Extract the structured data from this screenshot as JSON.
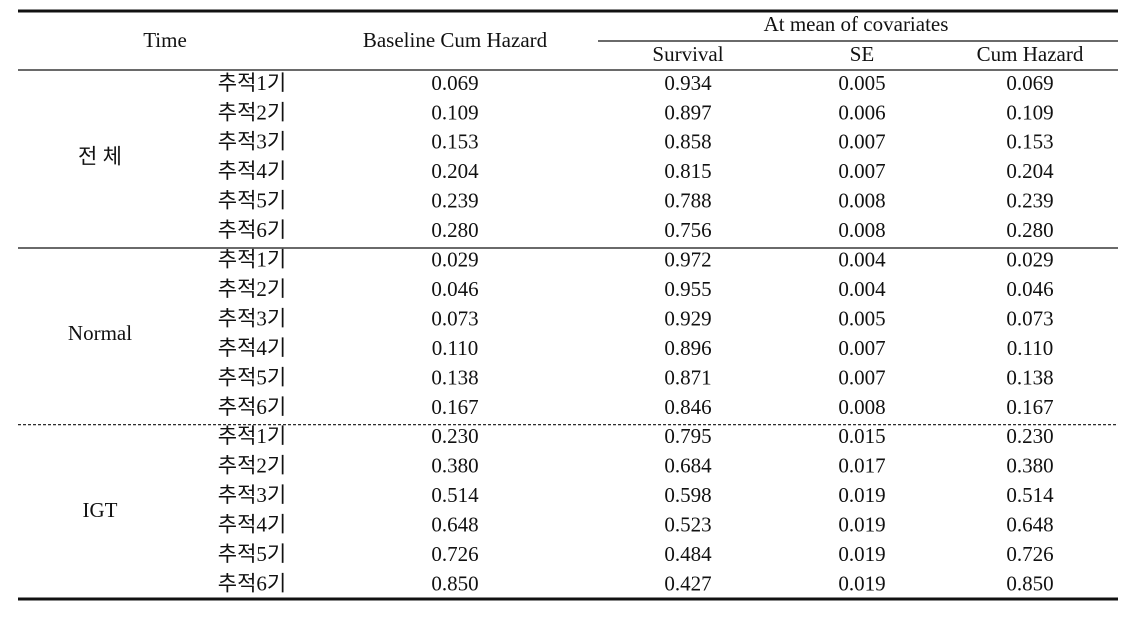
{
  "table": {
    "header": {
      "time": "Time",
      "baseline": "Baseline Cum Hazard",
      "group": "At mean of covariates",
      "sub": [
        "Survival",
        "SE",
        "Cum Hazard"
      ]
    },
    "groups": [
      {
        "name": "전 체",
        "rows": [
          [
            "추적1기",
            "0.069",
            "0.934",
            "0.005",
            "0.069"
          ],
          [
            "추적2기",
            "0.109",
            "0.897",
            "0.006",
            "0.109"
          ],
          [
            "추적3기",
            "0.153",
            "0.858",
            "0.007",
            "0.153"
          ],
          [
            "추적4기",
            "0.204",
            "0.815",
            "0.007",
            "0.204"
          ],
          [
            "추적5기",
            "0.239",
            "0.788",
            "0.008",
            "0.239"
          ],
          [
            "추적6기",
            "0.280",
            "0.756",
            "0.008",
            "0.280"
          ]
        ]
      },
      {
        "name": "Normal",
        "rows": [
          [
            "추적1기",
            "0.029",
            "0.972",
            "0.004",
            "0.029"
          ],
          [
            "추적2기",
            "0.046",
            "0.955",
            "0.004",
            "0.046"
          ],
          [
            "추적3기",
            "0.073",
            "0.929",
            "0.005",
            "0.073"
          ],
          [
            "추적4기",
            "0.110",
            "0.896",
            "0.007",
            "0.110"
          ],
          [
            "추적5기",
            "0.138",
            "0.871",
            "0.007",
            "0.138"
          ],
          [
            "추적6기",
            "0.167",
            "0.846",
            "0.008",
            "0.167"
          ]
        ]
      },
      {
        "name": "IGT",
        "rows": [
          [
            "추적1기",
            "0.230",
            "0.795",
            "0.015",
            "0.230"
          ],
          [
            "추적2기",
            "0.380",
            "0.684",
            "0.017",
            "0.380"
          ],
          [
            "추적3기",
            "0.514",
            "0.598",
            "0.019",
            "0.514"
          ],
          [
            "추적4기",
            "0.648",
            "0.523",
            "0.019",
            "0.648"
          ],
          [
            "추적5기",
            "0.726",
            "0.484",
            "0.019",
            "0.726"
          ],
          [
            "추적6기",
            "0.850",
            "0.427",
            "0.019",
            "0.850"
          ]
        ]
      }
    ]
  }
}
